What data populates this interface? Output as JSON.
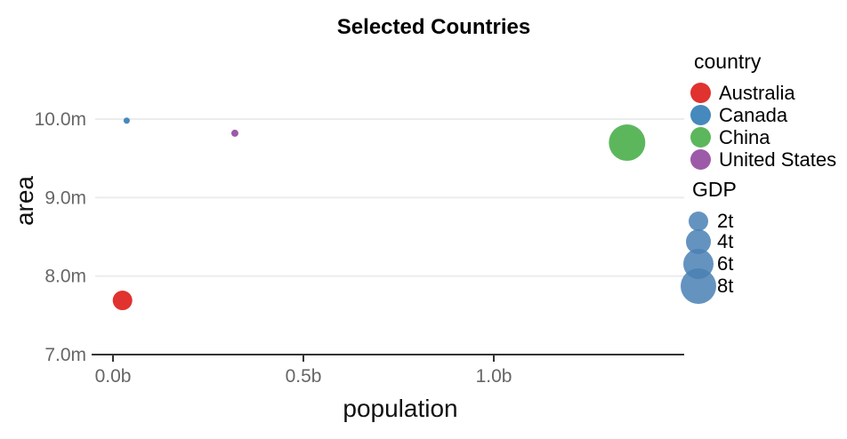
{
  "chart_data": {
    "type": "bubble",
    "title": "Selected Countries",
    "xlabel": "population",
    "ylabel": "area",
    "x_ticks": [
      {
        "v": 0.0,
        "label": "0.0b"
      },
      {
        "v": 0.5,
        "label": "0.5b"
      },
      {
        "v": 1.0,
        "label": "1.0b"
      }
    ],
    "y_ticks": [
      {
        "v": 7.0,
        "label": "7.0m"
      },
      {
        "v": 8.0,
        "label": "8.0m"
      },
      {
        "v": 9.0,
        "label": "9.0m"
      },
      {
        "v": 10.0,
        "label": "10.0m"
      }
    ],
    "xlim": [
      0,
      1.5
    ],
    "ylim": [
      7.0,
      10.3
    ],
    "x_unit": "billions",
    "y_unit": "millions",
    "grid": "horizontal-only",
    "legend_position": "right",
    "points": [
      {
        "country": "Australia",
        "population_b": 0.025,
        "area_m": 7.69,
        "gdp_approx_t": 1.5,
        "radius_px": 11,
        "color": "#e0322f"
      },
      {
        "country": "Canada",
        "population_b": 0.036,
        "area_m": 9.98,
        "gdp_approx_t": 0.15,
        "radius_px": 3.5,
        "color": "#4689bd"
      },
      {
        "country": "China",
        "population_b": 1.35,
        "area_m": 9.7,
        "gdp_approx_t": 8.0,
        "radius_px": 20.5,
        "color": "#5cb75c"
      },
      {
        "country": "United States",
        "population_b": 0.32,
        "area_m": 9.82,
        "gdp_approx_t": 0.2,
        "radius_px": 4,
        "color": "#9d5aa8"
      }
    ],
    "legend": {
      "country": {
        "title": "country",
        "items": [
          {
            "label": "Australia",
            "color": "#e0322f"
          },
          {
            "label": "Canada",
            "color": "#4689bd"
          },
          {
            "label": "China",
            "color": "#5cb75c"
          },
          {
            "label": "United States",
            "color": "#9d5aa8"
          }
        ]
      },
      "gdp": {
        "title": "GDP",
        "symbol_color": "#5b8cbb",
        "items": [
          {
            "label": "2t",
            "radius_px": 11
          },
          {
            "label": "4t",
            "radius_px": 14
          },
          {
            "label": "6t",
            "radius_px": 17
          },
          {
            "label": "8t",
            "radius_px": 20
          }
        ]
      }
    },
    "colors": {
      "gridline": "#ececec",
      "axis_line": "#333333",
      "tick_label": "#666666",
      "title": "#000000"
    }
  }
}
